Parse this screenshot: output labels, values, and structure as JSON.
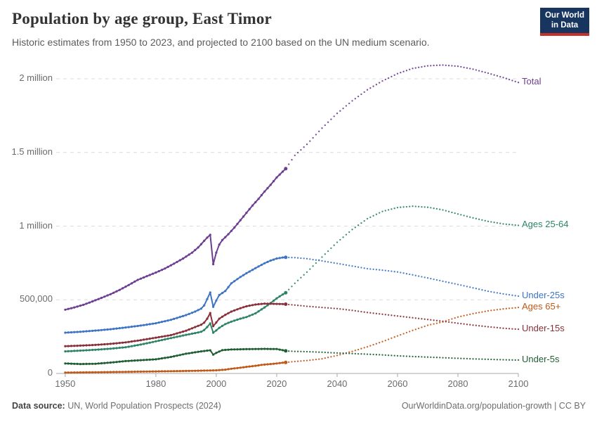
{
  "header": {
    "title": "Population by age group, East Timor",
    "subtitle": "Historic estimates from 1950 to 2023, and projected to 2100 based on the UN medium scenario.",
    "logo": {
      "line1": "Our World",
      "line2": "in Data",
      "bg_color": "#17355F",
      "bar_color": "#C5302B"
    }
  },
  "footer": {
    "source_label": "Data source:",
    "source_rest": " UN, World Population Prospects (2024)",
    "right_text": "OurWorldinData.org/population-growth | CC BY"
  },
  "chart_data": {
    "type": "line",
    "title": "Population by age group, East Timor",
    "xlabel": "",
    "ylabel": "",
    "grid": "dashed-horizontal",
    "legend_position": "right-end-labels",
    "projection_start": 2023,
    "xlim": [
      1947,
      2100
    ],
    "ylim": [
      0,
      2100000
    ],
    "x_ticks": [
      1950,
      1980,
      2000,
      2020,
      2040,
      2060,
      2080,
      2100
    ],
    "y_ticks": [
      {
        "value": 0,
        "label": "0"
      },
      {
        "value": 500000,
        "label": "500,000"
      },
      {
        "value": 1000000,
        "label": "1 million"
      },
      {
        "value": 1500000,
        "label": "1.5 million"
      },
      {
        "value": 2000000,
        "label": "2 million"
      }
    ],
    "series": [
      {
        "name": "Total",
        "color": "#6D3E91",
        "historic": [
          [
            1950,
            433000
          ],
          [
            1953,
            448000
          ],
          [
            1956,
            466000
          ],
          [
            1959,
            489000
          ],
          [
            1962,
            513000
          ],
          [
            1965,
            538000
          ],
          [
            1968,
            567000
          ],
          [
            1971,
            600000
          ],
          [
            1974,
            635000
          ],
          [
            1977,
            660000
          ],
          [
            1980,
            685000
          ],
          [
            1983,
            712000
          ],
          [
            1986,
            745000
          ],
          [
            1989,
            780000
          ],
          [
            1992,
            820000
          ],
          [
            1994,
            855000
          ],
          [
            1996,
            900000
          ],
          [
            1997,
            922000
          ],
          [
            1998,
            941000
          ],
          [
            1999,
            742000
          ],
          [
            2000,
            820000
          ],
          [
            2001,
            875000
          ],
          [
            2002,
            905000
          ],
          [
            2004,
            945000
          ],
          [
            2006,
            990000
          ],
          [
            2008,
            1040000
          ],
          [
            2010,
            1090000
          ],
          [
            2012,
            1140000
          ],
          [
            2014,
            1185000
          ],
          [
            2016,
            1235000
          ],
          [
            2018,
            1280000
          ],
          [
            2020,
            1330000
          ],
          [
            2022,
            1370000
          ],
          [
            2023,
            1390000
          ]
        ],
        "projection": [
          [
            2023,
            1390000
          ],
          [
            2026,
            1480000
          ],
          [
            2030,
            1555000
          ],
          [
            2035,
            1665000
          ],
          [
            2040,
            1765000
          ],
          [
            2045,
            1850000
          ],
          [
            2050,
            1925000
          ],
          [
            2055,
            1985000
          ],
          [
            2060,
            2035000
          ],
          [
            2065,
            2070000
          ],
          [
            2070,
            2088000
          ],
          [
            2075,
            2093000
          ],
          [
            2080,
            2085000
          ],
          [
            2085,
            2065000
          ],
          [
            2090,
            2038000
          ],
          [
            2095,
            2008000
          ],
          [
            2100,
            1975000
          ]
        ]
      },
      {
        "name": "Ages 25-64",
        "color": "#2C8465",
        "historic": [
          [
            1950,
            150000
          ],
          [
            1955,
            155000
          ],
          [
            1960,
            161000
          ],
          [
            1965,
            168000
          ],
          [
            1970,
            178000
          ],
          [
            1975,
            196000
          ],
          [
            1980,
            218000
          ],
          [
            1985,
            240000
          ],
          [
            1990,
            262000
          ],
          [
            1993,
            274000
          ],
          [
            1995,
            283000
          ],
          [
            1996,
            295000
          ],
          [
            1997,
            315000
          ],
          [
            1998,
            340000
          ],
          [
            1999,
            277000
          ],
          [
            2000,
            292000
          ],
          [
            2001,
            310000
          ],
          [
            2003,
            335000
          ],
          [
            2005,
            352000
          ],
          [
            2008,
            372000
          ],
          [
            2010,
            383000
          ],
          [
            2013,
            408000
          ],
          [
            2016,
            448000
          ],
          [
            2018,
            478000
          ],
          [
            2020,
            510000
          ],
          [
            2022,
            536000
          ],
          [
            2023,
            548000
          ]
        ],
        "projection": [
          [
            2023,
            548000
          ],
          [
            2026,
            612000
          ],
          [
            2030,
            688000
          ],
          [
            2035,
            790000
          ],
          [
            2040,
            890000
          ],
          [
            2045,
            977000
          ],
          [
            2050,
            1050000
          ],
          [
            2055,
            1100000
          ],
          [
            2060,
            1126000
          ],
          [
            2065,
            1135000
          ],
          [
            2070,
            1128000
          ],
          [
            2075,
            1110000
          ],
          [
            2080,
            1082000
          ],
          [
            2085,
            1056000
          ],
          [
            2090,
            1032000
          ],
          [
            2095,
            1015000
          ],
          [
            2100,
            1005000
          ]
        ]
      },
      {
        "name": "Under-25s",
        "color": "#3D74C4",
        "historic": [
          [
            1950,
            277000
          ],
          [
            1955,
            283000
          ],
          [
            1960,
            291000
          ],
          [
            1965,
            300000
          ],
          [
            1970,
            312000
          ],
          [
            1975,
            325000
          ],
          [
            1980,
            341000
          ],
          [
            1985,
            364000
          ],
          [
            1990,
            396000
          ],
          [
            1993,
            420000
          ],
          [
            1995,
            440000
          ],
          [
            1996,
            462000
          ],
          [
            1997,
            505000
          ],
          [
            1998,
            550000
          ],
          [
            1999,
            452000
          ],
          [
            2000,
            495000
          ],
          [
            2001,
            532000
          ],
          [
            2003,
            560000
          ],
          [
            2005,
            612000
          ],
          [
            2008,
            655000
          ],
          [
            2010,
            680000
          ],
          [
            2013,
            715000
          ],
          [
            2016,
            748000
          ],
          [
            2018,
            766000
          ],
          [
            2020,
            780000
          ],
          [
            2022,
            787000
          ],
          [
            2023,
            788000
          ]
        ],
        "projection": [
          [
            2023,
            788000
          ],
          [
            2026,
            786000
          ],
          [
            2030,
            779000
          ],
          [
            2035,
            764000
          ],
          [
            2040,
            747000
          ],
          [
            2045,
            729000
          ],
          [
            2050,
            711000
          ],
          [
            2055,
            701000
          ],
          [
            2060,
            689000
          ],
          [
            2065,
            669000
          ],
          [
            2070,
            648000
          ],
          [
            2075,
            626000
          ],
          [
            2080,
            604000
          ],
          [
            2085,
            581000
          ],
          [
            2090,
            558000
          ],
          [
            2095,
            540000
          ],
          [
            2100,
            525000
          ]
        ]
      },
      {
        "name": "Ages 65+",
        "color": "#C05917",
        "historic": [
          [
            1950,
            6000
          ],
          [
            1955,
            7000
          ],
          [
            1960,
            8000
          ],
          [
            1965,
            9500
          ],
          [
            1970,
            11000
          ],
          [
            1975,
            12500
          ],
          [
            1980,
            14000
          ],
          [
            1985,
            15500
          ],
          [
            1990,
            17000
          ],
          [
            1995,
            19000
          ],
          [
            1999,
            21000
          ],
          [
            2000,
            21500
          ],
          [
            2003,
            26000
          ],
          [
            2005,
            32000
          ],
          [
            2008,
            39000
          ],
          [
            2010,
            45000
          ],
          [
            2013,
            52000
          ],
          [
            2015,
            58000
          ],
          [
            2018,
            64000
          ],
          [
            2020,
            68000
          ],
          [
            2022,
            73000
          ],
          [
            2023,
            75000
          ]
        ],
        "projection": [
          [
            2023,
            75000
          ],
          [
            2026,
            81000
          ],
          [
            2030,
            88000
          ],
          [
            2035,
            100000
          ],
          [
            2040,
            122000
          ],
          [
            2045,
            150000
          ],
          [
            2050,
            181000
          ],
          [
            2055,
            216000
          ],
          [
            2060,
            255000
          ],
          [
            2065,
            292000
          ],
          [
            2070,
            327000
          ],
          [
            2075,
            350000
          ],
          [
            2080,
            383000
          ],
          [
            2085,
            406000
          ],
          [
            2090,
            425000
          ],
          [
            2095,
            438000
          ],
          [
            2100,
            448000
          ]
        ]
      },
      {
        "name": "Under-15s",
        "color": "#883039",
        "historic": [
          [
            1950,
            185000
          ],
          [
            1955,
            189000
          ],
          [
            1960,
            194000
          ],
          [
            1965,
            201000
          ],
          [
            1970,
            211000
          ],
          [
            1975,
            226000
          ],
          [
            1980,
            243000
          ],
          [
            1985,
            260000
          ],
          [
            1990,
            290000
          ],
          [
            1993,
            315000
          ],
          [
            1995,
            331000
          ],
          [
            1996,
            345000
          ],
          [
            1997,
            372000
          ],
          [
            1998,
            410000
          ],
          [
            1999,
            321000
          ],
          [
            2000,
            346000
          ],
          [
            2001,
            372000
          ],
          [
            2003,
            398000
          ],
          [
            2005,
            420000
          ],
          [
            2008,
            443000
          ],
          [
            2010,
            456000
          ],
          [
            2013,
            468000
          ],
          [
            2016,
            474000
          ],
          [
            2018,
            473000
          ],
          [
            2020,
            472000
          ],
          [
            2022,
            471000
          ],
          [
            2023,
            470000
          ]
        ],
        "projection": [
          [
            2023,
            470000
          ],
          [
            2030,
            456000
          ],
          [
            2035,
            448000
          ],
          [
            2040,
            440000
          ],
          [
            2045,
            428000
          ],
          [
            2050,
            414000
          ],
          [
            2055,
            402000
          ],
          [
            2060,
            390000
          ],
          [
            2065,
            378000
          ],
          [
            2070,
            366000
          ],
          [
            2075,
            354000
          ],
          [
            2080,
            341000
          ],
          [
            2085,
            328000
          ],
          [
            2090,
            317000
          ],
          [
            2095,
            307000
          ],
          [
            2100,
            300000
          ]
        ]
      },
      {
        "name": "Under-5s",
        "color": "#1F5E32",
        "historic": [
          [
            1950,
            68000
          ],
          [
            1955,
            64000
          ],
          [
            1960,
            66000
          ],
          [
            1965,
            74000
          ],
          [
            1970,
            84000
          ],
          [
            1975,
            90000
          ],
          [
            1980,
            96000
          ],
          [
            1985,
            112000
          ],
          [
            1990,
            134000
          ],
          [
            1995,
            150000
          ],
          [
            1997,
            155000
          ],
          [
            1998,
            157000
          ],
          [
            1999,
            128000
          ],
          [
            2000,
            140000
          ],
          [
            2002,
            158000
          ],
          [
            2005,
            163000
          ],
          [
            2008,
            164000
          ],
          [
            2010,
            165000
          ],
          [
            2013,
            166000
          ],
          [
            2016,
            167000
          ],
          [
            2018,
            166000
          ],
          [
            2020,
            166000
          ],
          [
            2022,
            158000
          ],
          [
            2023,
            153000
          ]
        ],
        "projection": [
          [
            2023,
            153000
          ],
          [
            2026,
            150000
          ],
          [
            2030,
            148000
          ],
          [
            2035,
            144000
          ],
          [
            2040,
            139000
          ],
          [
            2045,
            135000
          ],
          [
            2050,
            131000
          ],
          [
            2055,
            126000
          ],
          [
            2060,
            120000
          ],
          [
            2065,
            115000
          ],
          [
            2070,
            111000
          ],
          [
            2075,
            107000
          ],
          [
            2080,
            103000
          ],
          [
            2085,
            99000
          ],
          [
            2090,
            96000
          ],
          [
            2095,
            93000
          ],
          [
            2100,
            91000
          ]
        ]
      }
    ]
  }
}
